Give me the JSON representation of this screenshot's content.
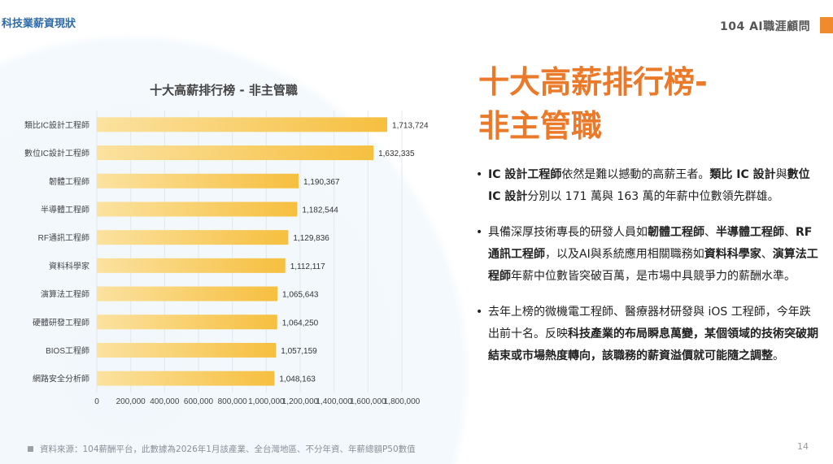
{
  "header": {
    "title": "科技業薪資現狀",
    "logo_text": "104 AI職涯顧問",
    "accent_color": "#f08a2c"
  },
  "main": {
    "title_line1": "十大高薪排行榜-",
    "title_line2": "非主管職",
    "title_color": "#ea7a2a",
    "bullets": [
      [
        {
          "t": "IC 設計工程師",
          "b": true
        },
        {
          "t": "依然是難以撼動的高薪王者。",
          "b": false
        },
        {
          "t": "類比 IC 設計",
          "b": true
        },
        {
          "t": "與",
          "b": false
        },
        {
          "t": "數位 IC 設計",
          "b": true
        },
        {
          "t": "分別以 171 萬與 163 萬的年薪中位數領先群雄。",
          "b": false
        }
      ],
      [
        {
          "t": "具備深厚技術專長的研發人員如",
          "b": false
        },
        {
          "t": "韌體工程師",
          "b": true
        },
        {
          "t": "、",
          "b": false
        },
        {
          "t": "半導體工程師",
          "b": true
        },
        {
          "t": "、",
          "b": false
        },
        {
          "t": "RF通訊工程師",
          "b": true
        },
        {
          "t": "，以及AI與系統應用相關職務如",
          "b": false
        },
        {
          "t": "資料科學家",
          "b": true
        },
        {
          "t": "、",
          "b": false
        },
        {
          "t": "演算法工程師",
          "b": true
        },
        {
          "t": "年薪中位數皆突破百萬，是市場中具競爭力的薪酬水準。",
          "b": false
        }
      ],
      [
        {
          "t": "去年上榜的微機電工程師、醫療器材研發與 iOS 工程師，今年跌出前十名。反映",
          "b": false
        },
        {
          "t": "科技產業的布局瞬息萬變，某個領域的技術突破期結束或市場熱度轉向，該職務的薪資溢價就可能隨之調整",
          "b": true
        },
        {
          "t": "。",
          "b": false
        }
      ]
    ]
  },
  "chart_data": {
    "type": "bar",
    "orientation": "horizontal",
    "title": "十大高薪排行榜 - 非主管職",
    "categories": [
      "類比IC設計工程師",
      "數位IC設計工程師",
      "韌體工程師",
      "半導體工程師",
      "RF通訊工程師",
      "資料科學家",
      "演算法工程師",
      "硬體研發工程師",
      "BIOS工程師",
      "網路安全分析師"
    ],
    "values": [
      1713724,
      1632335,
      1190367,
      1182544,
      1129836,
      1112117,
      1065643,
      1064250,
      1057159,
      1048163
    ],
    "value_labels": [
      "1,713,724",
      "1,632,335",
      "1,190,367",
      "1,182,544",
      "1,129,836",
      "1,112,117",
      "1,065,643",
      "1,064,250",
      "1,057,159",
      "1,048,163"
    ],
    "xlim": [
      0,
      1800000
    ],
    "x_ticks": [
      "0",
      "200,000",
      "400,000",
      "600,000",
      "800,000",
      "1,000,000",
      "1,200,000",
      "1,400,000",
      "1,600,000",
      "1,800,000"
    ],
    "grid": true,
    "bar_color": "#f6bf3f",
    "bar_color_light": "#fbe2a0"
  },
  "footer": {
    "source": "資料來源：104薪酬平台，此數據為2026年1月該產業、全台灣地區、不分年資、年薪總額P50數值",
    "page": "14"
  }
}
